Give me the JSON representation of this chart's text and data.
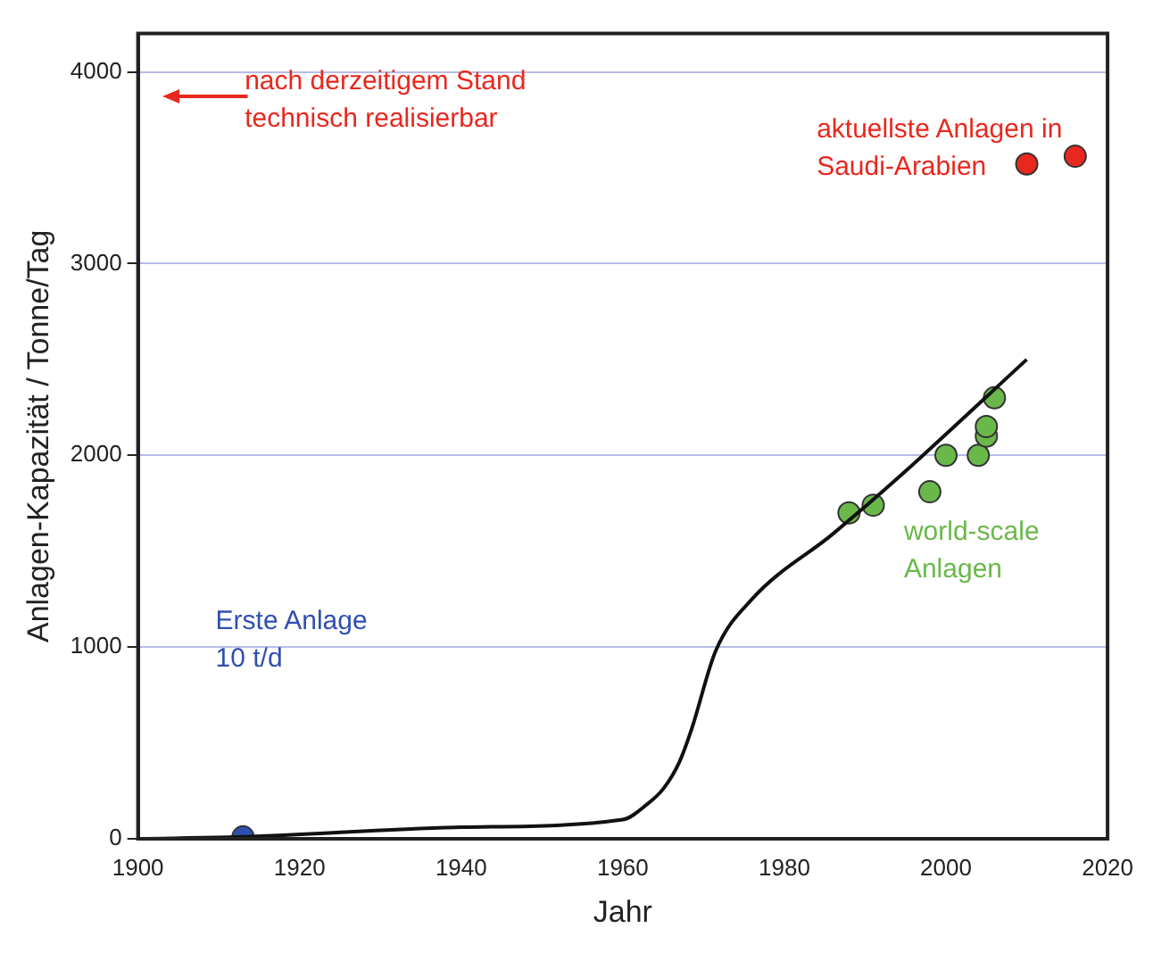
{
  "chart_data": {
    "type": "scatter",
    "xlabel": "Jahr",
    "ylabel": "Anlagen-Kapazität / Tonne/Tag",
    "xlim": [
      1900,
      2020
    ],
    "xticks": [
      1900,
      1920,
      1940,
      1960,
      1980,
      2000,
      2020
    ],
    "ylim": [
      0,
      4200
    ],
    "yticks": [
      0,
      1000,
      2000,
      3000,
      4000
    ],
    "grid": "y",
    "series": [
      {
        "type": "line",
        "color": "#111111",
        "x": [
          1900,
          1913,
          1940,
          1960,
          1963,
          1965,
          1967,
          1968.5,
          1971.5,
          1976,
          1986,
          1994,
          2010
        ],
        "values": [
          0,
          10,
          60,
          100,
          180,
          260,
          400,
          570,
          980,
          1250,
          1590,
          1880,
          2500
        ]
      },
      {
        "color": "#6ab84a",
        "x": [
          1988,
          1991,
          1998,
          2000,
          2004,
          2005,
          2005,
          2006
        ],
        "values": [
          1700,
          1740,
          1810,
          2000,
          2000,
          2100,
          2150,
          2300
        ]
      },
      {
        "color": "#e8281e",
        "x": [
          2010,
          2016
        ],
        "values": [
          3520,
          3560
        ]
      },
      {
        "color": "#3050b0",
        "x": [
          1913
        ],
        "values": [
          10
        ]
      }
    ],
    "annotations": [
      "nach derzeitigem Stand\ntechnisch realisierbar",
      "aktuellste Anlagen in\nSaudi-Arabien",
      "world-scale\nAnlagen",
      "Erste Anlage\n10 t/d"
    ]
  }
}
